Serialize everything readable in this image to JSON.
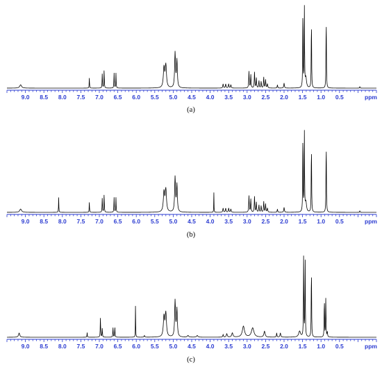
{
  "figure": {
    "panel_labels": [
      "(a)",
      "(b)",
      "(c)"
    ]
  },
  "chart_data": [
    {
      "type": "line",
      "panel": "(a)",
      "xlabel": "ppm",
      "xlim": [
        9.5,
        -0.5
      ],
      "x_reversed": true,
      "ticks": [
        9.0,
        8.5,
        8.0,
        7.5,
        7.0,
        6.5,
        6.0,
        5.5,
        5.0,
        4.5,
        4.0,
        3.5,
        3.0,
        2.5,
        2.0,
        1.5,
        1.0,
        0.5
      ],
      "tick_labels": [
        "9.0",
        "8.5",
        "8.0",
        "7.5",
        "7.0",
        "6.5",
        "6.0",
        "5.5",
        "5.0",
        "4.5",
        "4.0",
        "3.5",
        "3.0",
        "2.5",
        "2.0",
        "1.5",
        "1.0",
        "0.5"
      ],
      "ylim": [
        0,
        1
      ],
      "peaks": [
        {
          "x": 9.13,
          "y": 0.04,
          "w": 0.03
        },
        {
          "x": 7.27,
          "y": 0.13,
          "w": 0.005
        },
        {
          "x": 6.92,
          "y": 0.18,
          "w": 0.006
        },
        {
          "x": 6.87,
          "y": 0.22,
          "w": 0.006
        },
        {
          "x": 6.6,
          "y": 0.18,
          "w": 0.006
        },
        {
          "x": 6.55,
          "y": 0.18,
          "w": 0.006
        },
        {
          "x": 5.25,
          "y": 0.24,
          "w": 0.02
        },
        {
          "x": 5.2,
          "y": 0.27,
          "w": 0.02
        },
        {
          "x": 4.95,
          "y": 0.42,
          "w": 0.014
        },
        {
          "x": 4.9,
          "y": 0.33,
          "w": 0.014
        },
        {
          "x": 3.65,
          "y": 0.05,
          "w": 0.01
        },
        {
          "x": 3.58,
          "y": 0.05,
          "w": 0.01
        },
        {
          "x": 3.5,
          "y": 0.05,
          "w": 0.01
        },
        {
          "x": 3.44,
          "y": 0.04,
          "w": 0.01
        },
        {
          "x": 2.95,
          "y": 0.2,
          "w": 0.008
        },
        {
          "x": 2.9,
          "y": 0.16,
          "w": 0.008
        },
        {
          "x": 2.8,
          "y": 0.19,
          "w": 0.008
        },
        {
          "x": 2.75,
          "y": 0.12,
          "w": 0.008
        },
        {
          "x": 2.68,
          "y": 0.09,
          "w": 0.008
        },
        {
          "x": 2.62,
          "y": 0.08,
          "w": 0.008
        },
        {
          "x": 2.55,
          "y": 0.13,
          "w": 0.008
        },
        {
          "x": 2.5,
          "y": 0.1,
          "w": 0.008
        },
        {
          "x": 2.45,
          "y": 0.05,
          "w": 0.01
        },
        {
          "x": 2.18,
          "y": 0.04,
          "w": 0.008
        },
        {
          "x": 2.0,
          "y": 0.06,
          "w": 0.01
        },
        {
          "x": 1.49,
          "y": 1.0,
          "w": 0.006
        },
        {
          "x": 1.45,
          "y": 0.95,
          "w": 0.006
        },
        {
          "x": 1.41,
          "y": 0.12,
          "w": 0.02
        },
        {
          "x": 1.26,
          "y": 0.86,
          "w": 0.006
        },
        {
          "x": 0.86,
          "y": 0.9,
          "w": 0.006
        },
        {
          "x": -0.05,
          "y": 0.02,
          "w": 0.005
        }
      ]
    },
    {
      "type": "line",
      "panel": "(b)",
      "xlabel": "ppm",
      "xlim": [
        9.5,
        -0.5
      ],
      "x_reversed": true,
      "ticks": [
        9.0,
        8.5,
        8.0,
        7.5,
        7.0,
        6.5,
        6.0,
        5.5,
        5.0,
        4.5,
        4.0,
        3.5,
        3.0,
        2.5,
        2.0,
        1.5,
        1.0,
        0.5
      ],
      "tick_labels": [
        "9.0",
        "8.5",
        "8.0",
        "7.5",
        "7.0",
        "6.5",
        "6.0",
        "5.5",
        "5.0",
        "4.5",
        "4.0",
        "3.5",
        "3.0",
        "2.5",
        "2.0",
        "1.5",
        "1.0",
        "0.5"
      ],
      "ylim": [
        0,
        1
      ],
      "peaks": [
        {
          "x": 9.13,
          "y": 0.04,
          "w": 0.03
        },
        {
          "x": 8.1,
          "y": 0.18,
          "w": 0.005
        },
        {
          "x": 7.27,
          "y": 0.13,
          "w": 0.005
        },
        {
          "x": 6.92,
          "y": 0.18,
          "w": 0.006
        },
        {
          "x": 6.87,
          "y": 0.22,
          "w": 0.006
        },
        {
          "x": 6.6,
          "y": 0.18,
          "w": 0.006
        },
        {
          "x": 6.55,
          "y": 0.18,
          "w": 0.006
        },
        {
          "x": 5.25,
          "y": 0.24,
          "w": 0.02
        },
        {
          "x": 5.2,
          "y": 0.27,
          "w": 0.02
        },
        {
          "x": 4.95,
          "y": 0.42,
          "w": 0.014
        },
        {
          "x": 4.9,
          "y": 0.33,
          "w": 0.014
        },
        {
          "x": 3.9,
          "y": 0.24,
          "w": 0.004
        },
        {
          "x": 3.65,
          "y": 0.05,
          "w": 0.01
        },
        {
          "x": 3.58,
          "y": 0.05,
          "w": 0.01
        },
        {
          "x": 3.5,
          "y": 0.05,
          "w": 0.01
        },
        {
          "x": 3.44,
          "y": 0.04,
          "w": 0.01
        },
        {
          "x": 2.95,
          "y": 0.2,
          "w": 0.008
        },
        {
          "x": 2.9,
          "y": 0.16,
          "w": 0.008
        },
        {
          "x": 2.8,
          "y": 0.19,
          "w": 0.008
        },
        {
          "x": 2.75,
          "y": 0.12,
          "w": 0.008
        },
        {
          "x": 2.68,
          "y": 0.09,
          "w": 0.008
        },
        {
          "x": 2.62,
          "y": 0.08,
          "w": 0.008
        },
        {
          "x": 2.55,
          "y": 0.13,
          "w": 0.008
        },
        {
          "x": 2.5,
          "y": 0.1,
          "w": 0.008
        },
        {
          "x": 2.45,
          "y": 0.05,
          "w": 0.01
        },
        {
          "x": 2.18,
          "y": 0.04,
          "w": 0.008
        },
        {
          "x": 2.0,
          "y": 0.06,
          "w": 0.01
        },
        {
          "x": 1.49,
          "y": 1.0,
          "w": 0.006
        },
        {
          "x": 1.45,
          "y": 0.95,
          "w": 0.006
        },
        {
          "x": 1.41,
          "y": 0.12,
          "w": 0.02
        },
        {
          "x": 1.26,
          "y": 0.86,
          "w": 0.006
        },
        {
          "x": 0.86,
          "y": 0.9,
          "w": 0.006
        },
        {
          "x": -0.05,
          "y": 0.02,
          "w": 0.005
        }
      ]
    },
    {
      "type": "line",
      "panel": "(c)",
      "xlabel": "ppm",
      "xlim": [
        9.5,
        -0.5
      ],
      "x_reversed": true,
      "ticks": [
        9.0,
        8.5,
        8.0,
        7.5,
        7.0,
        6.5,
        6.0,
        5.5,
        5.0,
        4.5,
        4.0,
        3.5,
        3.0,
        2.5,
        2.0,
        1.5,
        1.0,
        0.5
      ],
      "tick_labels": [
        "9.0",
        "8.5",
        "8.0",
        "7.5",
        "7.0",
        "6.5",
        "6.0",
        "5.5",
        "5.0",
        "4.5",
        "4.0",
        "3.5",
        "3.0",
        "2.5",
        "2.0",
        "1.5",
        "1.0",
        "0.5"
      ],
      "ylim": [
        0,
        1
      ],
      "peaks": [
        {
          "x": 9.17,
          "y": 0.05,
          "w": 0.02
        },
        {
          "x": 7.33,
          "y": 0.06,
          "w": 0.005
        },
        {
          "x": 6.97,
          "y": 0.24,
          "w": 0.006
        },
        {
          "x": 6.92,
          "y": 0.11,
          "w": 0.006
        },
        {
          "x": 6.63,
          "y": 0.12,
          "w": 0.006
        },
        {
          "x": 6.58,
          "y": 0.12,
          "w": 0.006
        },
        {
          "x": 6.02,
          "y": 0.42,
          "w": 0.004
        },
        {
          "x": 5.78,
          "y": 0.02,
          "w": 0.01
        },
        {
          "x": 5.25,
          "y": 0.24,
          "w": 0.02
        },
        {
          "x": 5.2,
          "y": 0.28,
          "w": 0.02
        },
        {
          "x": 4.95,
          "y": 0.43,
          "w": 0.014
        },
        {
          "x": 4.9,
          "y": 0.33,
          "w": 0.014
        },
        {
          "x": 4.6,
          "y": 0.02,
          "w": 0.02
        },
        {
          "x": 4.35,
          "y": 0.02,
          "w": 0.02
        },
        {
          "x": 3.65,
          "y": 0.03,
          "w": 0.01
        },
        {
          "x": 3.55,
          "y": 0.04,
          "w": 0.015
        },
        {
          "x": 3.4,
          "y": 0.05,
          "w": 0.02
        },
        {
          "x": 3.1,
          "y": 0.13,
          "w": 0.035
        },
        {
          "x": 2.85,
          "y": 0.11,
          "w": 0.04
        },
        {
          "x": 2.53,
          "y": 0.07,
          "w": 0.02
        },
        {
          "x": 2.2,
          "y": 0.05,
          "w": 0.008
        },
        {
          "x": 2.1,
          "y": 0.05,
          "w": 0.012
        },
        {
          "x": 1.58,
          "y": 0.07,
          "w": 0.03
        },
        {
          "x": 1.47,
          "y": 1.0,
          "w": 0.006
        },
        {
          "x": 1.43,
          "y": 0.95,
          "w": 0.006
        },
        {
          "x": 1.26,
          "y": 0.87,
          "w": 0.006
        },
        {
          "x": 0.91,
          "y": 0.48,
          "w": 0.006
        },
        {
          "x": 0.87,
          "y": 0.48,
          "w": 0.006
        },
        {
          "x": 0.83,
          "y": 0.06,
          "w": 0.008
        }
      ]
    }
  ]
}
